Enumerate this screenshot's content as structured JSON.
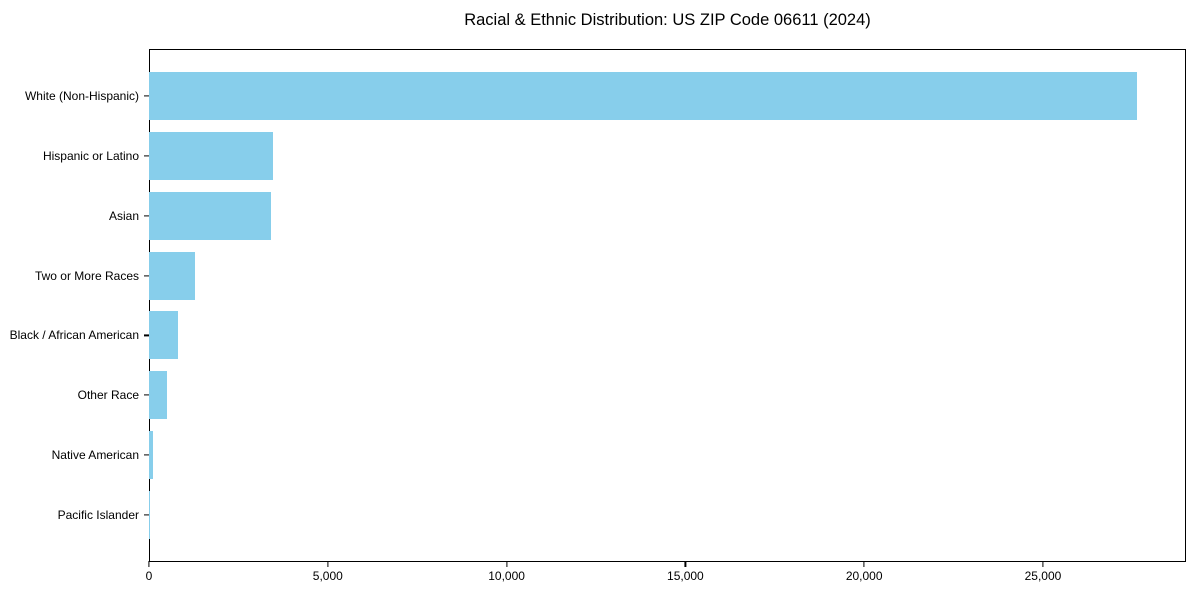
{
  "chart_data": {
    "type": "bar",
    "orientation": "horizontal",
    "title": "Racial & Ethnic Distribution: US ZIP Code 06611 (2024)",
    "categories": [
      "White (Non-Hispanic)",
      "Hispanic or Latino",
      "Asian",
      "Two or More Races",
      "Black / African American",
      "Other Race",
      "Native American",
      "Pacific Islander"
    ],
    "values": [
      27620,
      3480,
      3410,
      1300,
      800,
      490,
      100,
      10
    ],
    "bar_color": "#87CEEB",
    "axis_color": "#000000",
    "xlabel": "",
    "ylabel": "",
    "xlim": [
      0,
      29000
    ],
    "x_ticks": [
      0,
      5000,
      10000,
      15000,
      20000,
      25000
    ],
    "x_tick_labels": [
      "0",
      "5,000",
      "10,000",
      "15,000",
      "20,000",
      "25,000"
    ],
    "grid": false,
    "legend_position": "none"
  }
}
